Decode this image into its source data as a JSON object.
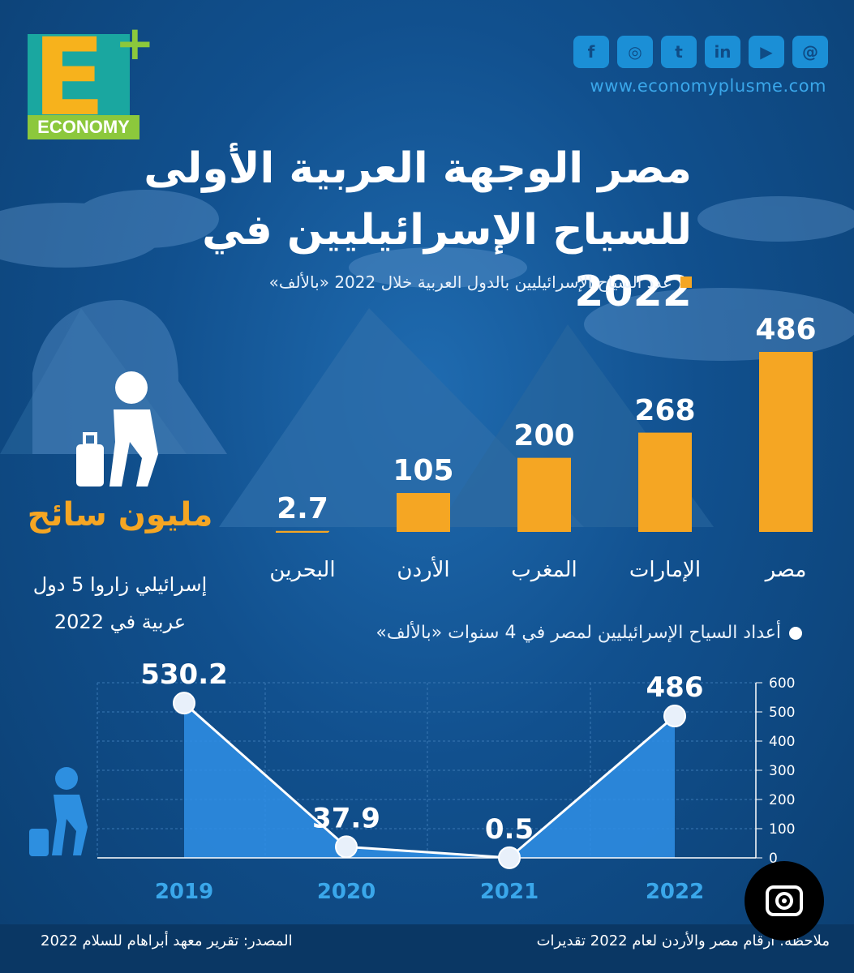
{
  "brand": {
    "logo_letter": "E",
    "logo_plus": "+",
    "logo_word": "ECONOMY",
    "website": "www.economyplusme.com",
    "social_icons": [
      "facebook-icon",
      "instagram-icon",
      "twitter-icon",
      "linkedin-icon",
      "youtube-icon",
      "threads-icon"
    ],
    "social_glyphs": [
      "f",
      "◎",
      "t",
      "in",
      "▶",
      "@"
    ]
  },
  "title": {
    "line1": "مصر الوجهة العربية الأولى",
    "line2": "للسياح الإسرائيليين في 2022"
  },
  "side": {
    "headline": "مليون سائح",
    "desc_line1": "إسرائيلي زاروا 5 دول",
    "desc_line2": "عربية في 2022"
  },
  "colors": {
    "background": "#0f4c86",
    "bar": "#f5a623",
    "area": "#2f8fe6",
    "accent_blue": "#3aa7ea",
    "logo_teal": "#1aa7a0",
    "logo_yellow": "#f7b21c",
    "logo_green": "#8cc83c"
  },
  "chart_data": [
    {
      "type": "bar",
      "title": "عدد السياح الإسرائيليين بالدول العربية خلال 2022 «بالألف»",
      "categories": [
        "مصر",
        "الإمارات",
        "المغرب",
        "الأردن",
        "البحرين"
      ],
      "values": [
        486,
        268,
        200,
        105,
        2.7
      ],
      "value_labels": [
        "486",
        "268",
        "200",
        "105",
        "2.7"
      ],
      "legend_marker": "square"
    },
    {
      "type": "area",
      "title": "أعداد السياح الإسرائيليين لمصر في 4 سنوات «بالألف»",
      "x": [
        "2019",
        "2020",
        "2021",
        "2022"
      ],
      "y": [
        530.2,
        37.9,
        0.5,
        486
      ],
      "value_labels": [
        "530.2",
        "37.9",
        "0.5",
        "486"
      ],
      "ylim": [
        0,
        600
      ],
      "yticks": [
        "0",
        "100",
        "200",
        "300",
        "400",
        "500",
        "600"
      ],
      "y_axis_side": "right",
      "grid": true,
      "legend_marker": "circle"
    }
  ],
  "footer": {
    "source": "المصدر: تقرير معهد أبراهام للسلام 2022",
    "note": "ملاحظة: أرقام مصر والأردن لعام 2022 تقديرات"
  }
}
